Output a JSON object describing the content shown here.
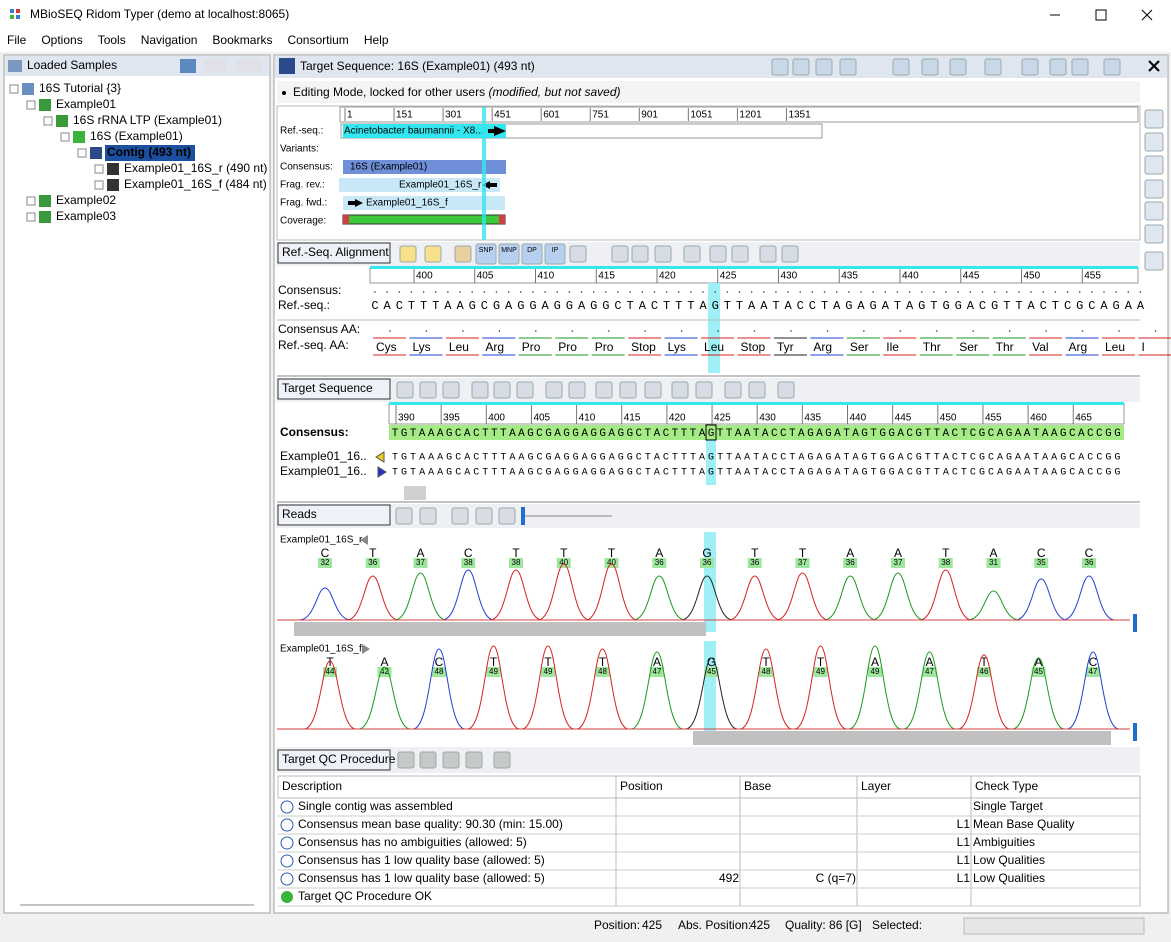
{
  "window": {
    "title": "MBioSEQ Ridom Typer (demo at localhost:8065)"
  },
  "menu": [
    "File",
    "Options",
    "Tools",
    "Navigation",
    "Bookmarks",
    "Consortium",
    "Help"
  ],
  "samples": {
    "title": "Loaded Samples",
    "tree": [
      "16S Tutorial {3}",
      "Example01",
      "16S rRNA LTP (Example01)",
      "16S (Example01)",
      "Contig (493 nt)",
      "Example01_16S_r (490 nt)",
      "Example01_16S_f (484 nt)",
      "Example02",
      "Example03"
    ]
  },
  "target": {
    "title": "Target Sequence: 16S (Example01) (493 nt)",
    "mode": "Editing Mode, locked for other users",
    "mode_note": "(modified, but not saved)"
  },
  "overview": {
    "ruler": [
      1,
      151,
      301,
      451,
      601,
      751,
      901,
      1051,
      1201,
      1351
    ],
    "rows": [
      "Ref.-seq.:",
      "Variants:",
      "Consensus:",
      "Frag. rev.:",
      "Frag. fwd.:",
      "Coverage:"
    ],
    "ref_label": "Acinetobacter baumannii - X8...",
    "consensus_label": "16S (Example01)",
    "rev_label": "Example01_16S_r",
    "fwd_label": "Example01_16S_f"
  },
  "base_colors": {
    "A": "#1a9a1a",
    "C": "#1f3fd6",
    "G": "#222222",
    "T": "#d62020"
  },
  "ref_alignment": {
    "tab": "Ref.-Seq. Alignment",
    "tools": [
      "SNP",
      "MNP",
      "DP",
      "IP"
    ],
    "ruler": [
      400,
      405,
      410,
      415,
      420,
      425,
      430,
      435,
      440,
      445,
      450,
      455
    ],
    "consensus_label": "Consensus:",
    "ref_label": "Ref.-seq.:",
    "ref_sequence": "CACTTTAAGCGAGGAGGAGGCTACTTTAGTTAATACCTAGAGATAGTGGACGTTACTCGCAGAA",
    "consensus_aa_label": "Consensus AA:",
    "ref_aa_label": "Ref.-seq. AA:",
    "ref_aa": [
      {
        "label": "Cys",
        "color": "#d62020"
      },
      {
        "label": "Lys",
        "color": "#1f3fd6"
      },
      {
        "label": "Leu",
        "color": "#d62020"
      },
      {
        "label": "Arg",
        "color": "#1f3fd6"
      },
      {
        "label": "Pro",
        "color": "#1a9a1a"
      },
      {
        "label": "Pro",
        "color": "#1a9a1a"
      },
      {
        "label": "Pro",
        "color": "#1a9a1a"
      },
      {
        "label": "Stop",
        "color": "#d62020"
      },
      {
        "label": "Lys",
        "color": "#1f3fd6"
      },
      {
        "label": "Leu",
        "color": "#d62020"
      },
      {
        "label": "Stop",
        "color": "#d62020"
      },
      {
        "label": "Tyr",
        "color": "#222222"
      },
      {
        "label": "Arg",
        "color": "#1f3fd6"
      },
      {
        "label": "Ser",
        "color": "#1a9a1a"
      },
      {
        "label": "Ile",
        "color": "#d62020"
      },
      {
        "label": "Thr",
        "color": "#1a9a1a"
      },
      {
        "label": "Ser",
        "color": "#1a9a1a"
      },
      {
        "label": "Thr",
        "color": "#1a9a1a"
      },
      {
        "label": "Val",
        "color": "#d62020"
      },
      {
        "label": "Arg",
        "color": "#1f3fd6"
      },
      {
        "label": "Leu",
        "color": "#d62020"
      },
      {
        "label": "I",
        "color": "#d62020"
      }
    ]
  },
  "target_sequence": {
    "tab": "Target Sequence",
    "ruler": [
      390,
      395,
      400,
      405,
      410,
      415,
      420,
      425,
      430,
      435,
      440,
      445,
      450,
      455,
      460,
      465
    ],
    "consensus_label": "Consensus:",
    "consensus": "TGTAAAGCACTTTAAGCGAGGAGGAGGCTACTTTAGTTAATACCTAGAGATAGTGGACGTTACTCGCAGAATAAGCACCGG",
    "reads": [
      {
        "name": "Example01_16..",
        "sequence": "TGTAAAGCACTTTAAGCGAGGAGGAGGCTACTTTAGTTAATACCTAGAGATAGTGGACGTTACTCGCAGAATAAGCACCGG"
      },
      {
        "name": "Example01_16..",
        "sequence": "TGTAAAGCACTTTAAGCGAGGAGGAGGCTACTTTAGTTAATACCTAGAGATAGTGGACGTTACTCGCAGAATAAGCACCGG"
      }
    ]
  },
  "reads": {
    "tab": "Reads",
    "traces": [
      {
        "name": "Example01_16S_r",
        "bases": "CTACTTTAGTTAATACC",
        "quality": [
          32,
          36,
          37,
          38,
          38,
          40,
          40,
          36,
          36,
          36,
          37,
          36,
          37,
          38,
          31,
          35,
          36
        ]
      },
      {
        "name": "Example01_16S_f",
        "bases": "TACTTTAGTTAATAC",
        "quality": [
          44,
          42,
          48,
          49,
          49,
          48,
          47,
          45,
          48,
          49,
          49,
          47,
          46,
          45,
          47
        ]
      }
    ]
  },
  "qc": {
    "tab": "Target QC Procedure",
    "columns": [
      "Description",
      "Position",
      "Base",
      "Layer",
      "Check Type"
    ],
    "rows": [
      [
        "Single contig was assembled",
        null,
        null,
        null,
        "Single Target"
      ],
      [
        "Consensus mean base quality: 90.30 (min: 15.00)",
        null,
        null,
        "L1",
        "Mean Base Quality"
      ],
      [
        "Consensus has no ambiguities (allowed: 5)",
        null,
        null,
        "L1",
        "Ambiguities"
      ],
      [
        "Consensus has 1 low quality base (allowed: 5)",
        null,
        null,
        "L1",
        "Low Qualities"
      ],
      [
        "Consensus has 1 low quality base (allowed: 5)",
        492,
        "C (q=7)",
        "L1",
        "Low Qualities"
      ],
      [
        "Target QC Procedure OK",
        null,
        null,
        null,
        null
      ]
    ]
  },
  "status": {
    "position_label": "Position:",
    "position": 425,
    "abs_label": "Abs. Position:",
    "abs_position": 425,
    "quality": "Quality: 86 [G]",
    "selected": "Selected:"
  }
}
